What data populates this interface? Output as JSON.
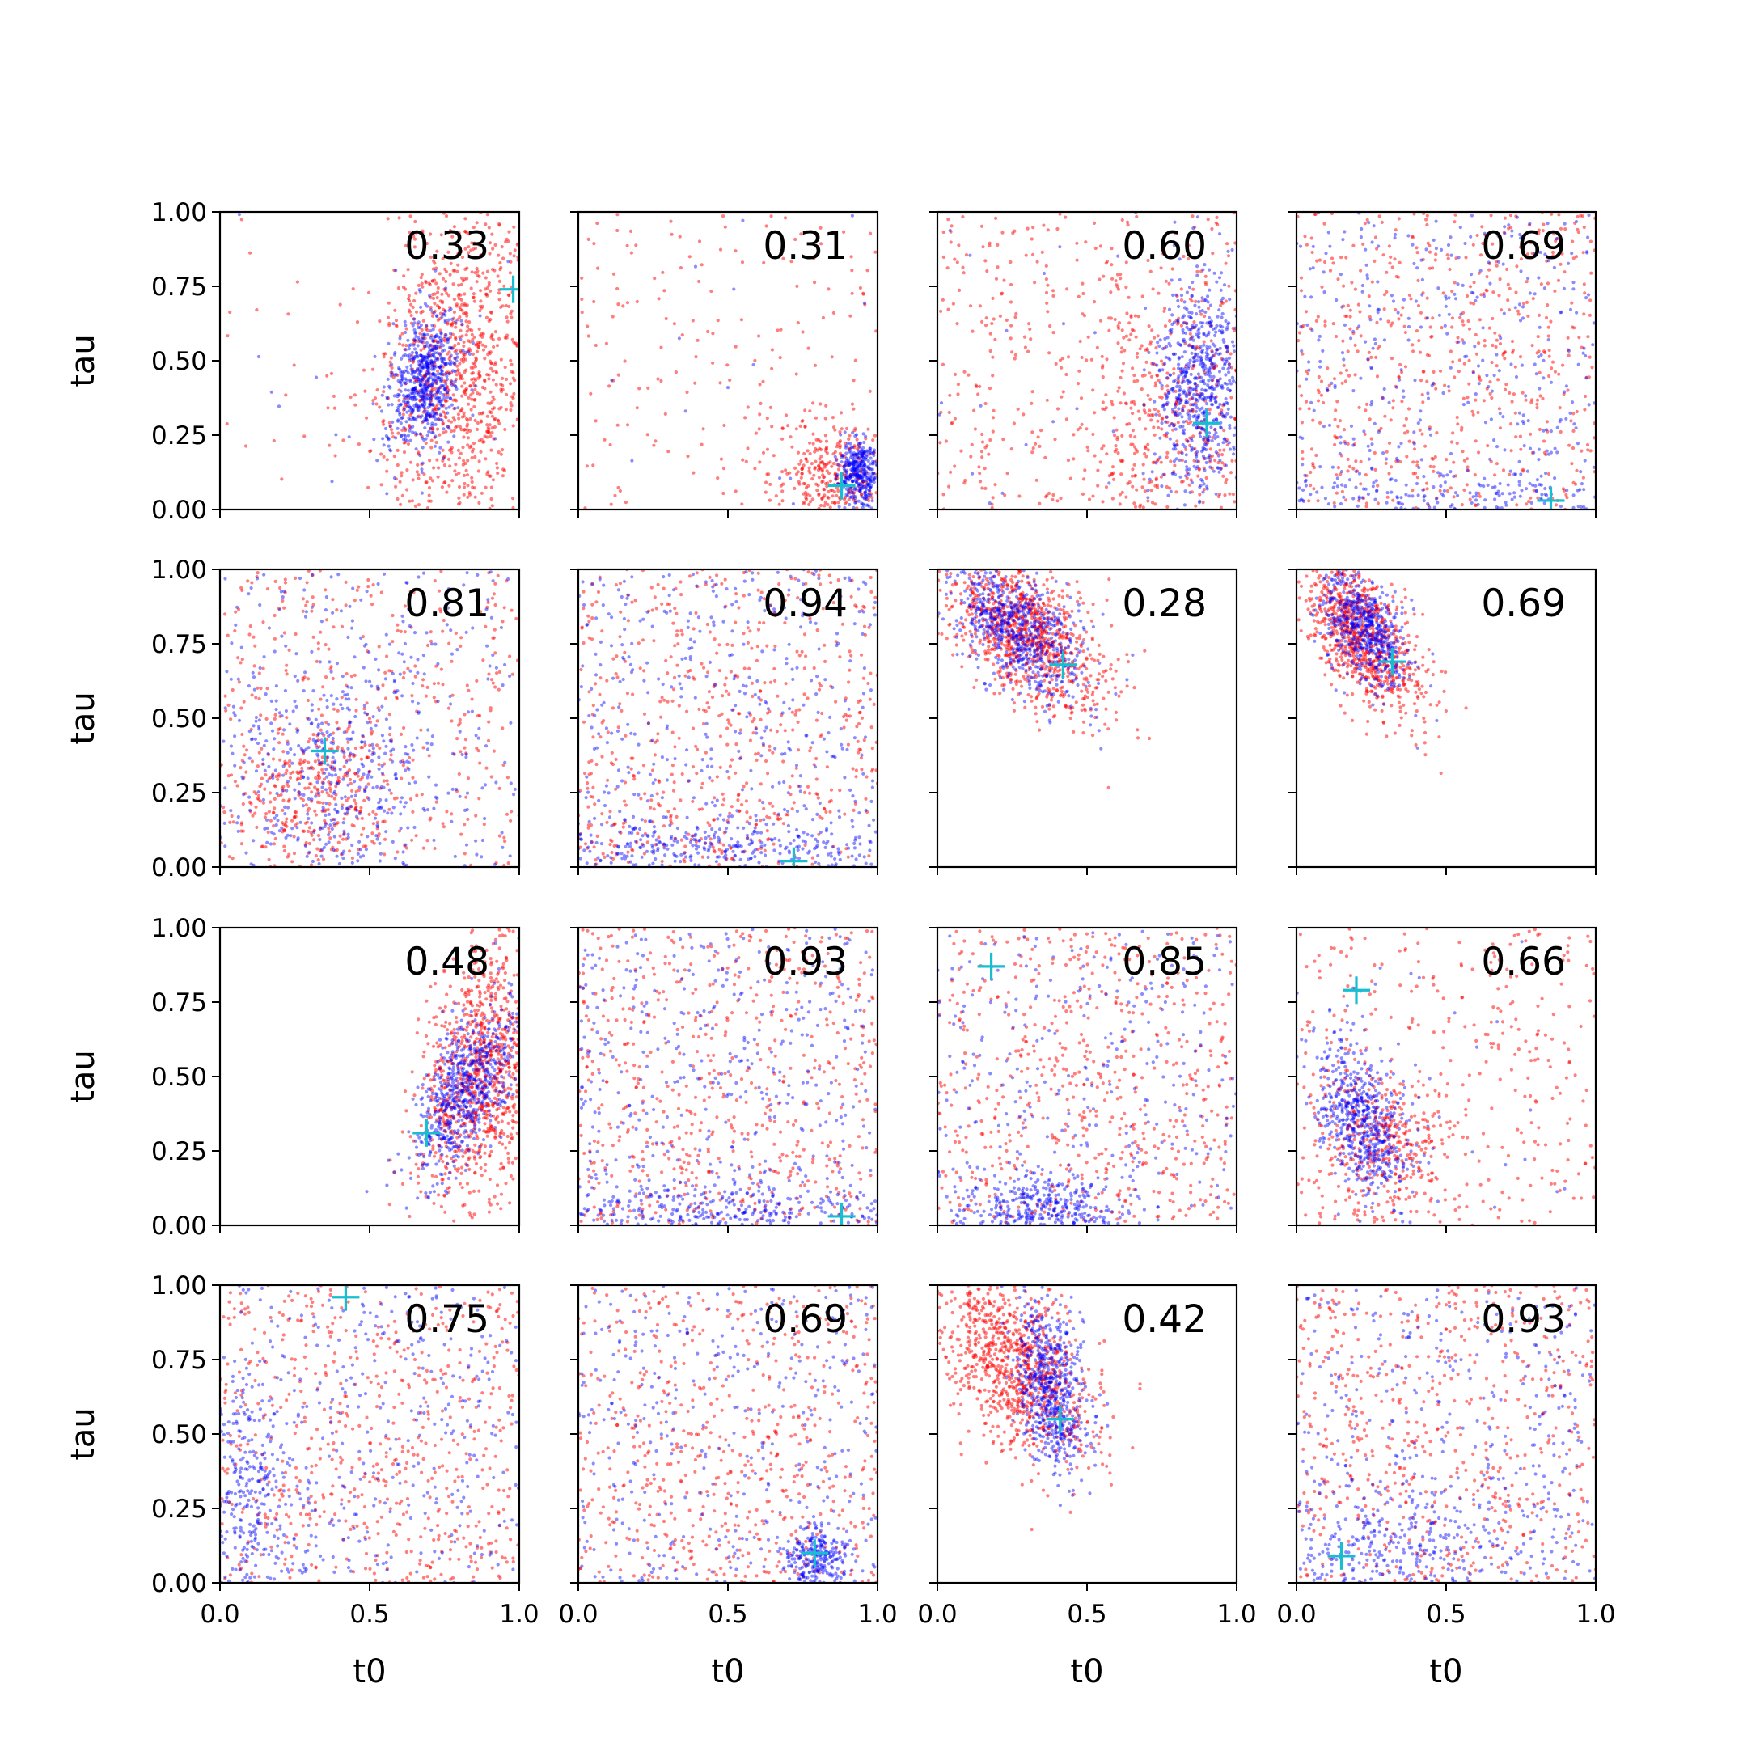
{
  "chart_data": {
    "type": "scatter",
    "layout": "4x4 grid of panels, shared axes",
    "xlabel": "t0",
    "ylabel": "tau",
    "xlim": [
      0,
      1
    ],
    "ylim": [
      0,
      1
    ],
    "xticks": [
      "0.0",
      "0.5",
      "1.0"
    ],
    "yticks": [
      "0.00",
      "0.25",
      "0.50",
      "0.75",
      "1.00"
    ],
    "colors": {
      "series_a": "#ff0000",
      "series_b": "#0000ff",
      "marker": "#17becf"
    },
    "marker_style": "plus",
    "panels": [
      {
        "label": "0.33",
        "marker": [
          0.98,
          0.74
        ],
        "red": {
          "cx": 0.8,
          "cy": 0.5,
          "sx": 0.13,
          "sy": 0.28,
          "rho": 0.1,
          "n": 900,
          "uniform": 0.05
        },
        "blue": {
          "cx": 0.68,
          "cy": 0.43,
          "sx": 0.06,
          "sy": 0.11,
          "rho": 0.2,
          "n": 650,
          "uniform": 0.02
        }
      },
      {
        "label": "0.31",
        "marker": [
          0.88,
          0.08
        ],
        "red": {
          "cx": 0.85,
          "cy": 0.12,
          "sx": 0.1,
          "sy": 0.1,
          "rho": 0.0,
          "n": 450,
          "uniform": 0.4
        },
        "blue": {
          "cx": 0.94,
          "cy": 0.12,
          "sx": 0.035,
          "sy": 0.06,
          "rho": 0.0,
          "n": 350,
          "uniform": 0.03
        }
      },
      {
        "label": "0.60",
        "marker": [
          0.9,
          0.29
        ],
        "red": {
          "cx": 0.8,
          "cy": 0.3,
          "sx": 0.15,
          "sy": 0.2,
          "rho": 0.0,
          "n": 700,
          "uniform": 0.55
        },
        "blue": {
          "cx": 0.88,
          "cy": 0.42,
          "sx": 0.07,
          "sy": 0.17,
          "rho": 0.0,
          "n": 650,
          "uniform": 0.05
        }
      },
      {
        "label": "0.69",
        "marker": [
          0.85,
          0.03
        ],
        "red": {
          "cx": 0.5,
          "cy": 0.5,
          "sx": 0.3,
          "sy": 0.3,
          "rho": 0.0,
          "n": 600,
          "uniform": 0.9
        },
        "blue": {
          "cx": 0.5,
          "cy": 0.05,
          "sx": 0.4,
          "sy": 0.04,
          "rho": 0.0,
          "n": 500,
          "uniform": 0.75
        }
      },
      {
        "label": "0.81",
        "marker": [
          0.35,
          0.39
        ],
        "red": {
          "cx": 0.3,
          "cy": 0.25,
          "sx": 0.15,
          "sy": 0.15,
          "rho": 0.0,
          "n": 700,
          "uniform": 0.5
        },
        "blue": {
          "cx": 0.38,
          "cy": 0.3,
          "sx": 0.15,
          "sy": 0.2,
          "rho": 0.0,
          "n": 600,
          "uniform": 0.5
        }
      },
      {
        "label": "0.94",
        "marker": [
          0.72,
          0.02
        ],
        "red": {
          "cx": 0.5,
          "cy": 0.2,
          "sx": 0.3,
          "sy": 0.15,
          "rho": 0.0,
          "n": 600,
          "uniform": 0.9
        },
        "blue": {
          "cx": 0.5,
          "cy": 0.05,
          "sx": 0.35,
          "sy": 0.05,
          "rho": 0.0,
          "n": 650,
          "uniform": 0.65
        }
      },
      {
        "label": "0.28",
        "marker": [
          0.42,
          0.68
        ],
        "red": {
          "cx": 0.3,
          "cy": 0.78,
          "sx": 0.13,
          "sy": 0.14,
          "rho": -0.55,
          "n": 900,
          "uniform": 0.0
        },
        "blue": {
          "cx": 0.27,
          "cy": 0.8,
          "sx": 0.11,
          "sy": 0.12,
          "rho": -0.55,
          "n": 650,
          "uniform": 0.0
        }
      },
      {
        "label": "0.69",
        "marker": [
          0.32,
          0.69
        ],
        "red": {
          "cx": 0.22,
          "cy": 0.78,
          "sx": 0.1,
          "sy": 0.14,
          "rho": -0.6,
          "n": 800,
          "uniform": 0.0
        },
        "blue": {
          "cx": 0.23,
          "cy": 0.8,
          "sx": 0.07,
          "sy": 0.1,
          "rho": -0.5,
          "n": 550,
          "uniform": 0.0
        }
      },
      {
        "label": "0.48",
        "marker": [
          0.69,
          0.31
        ],
        "red": {
          "cx": 0.88,
          "cy": 0.5,
          "sx": 0.1,
          "sy": 0.22,
          "rho": 0.3,
          "n": 900,
          "uniform": 0.0
        },
        "blue": {
          "cx": 0.82,
          "cy": 0.45,
          "sx": 0.09,
          "sy": 0.15,
          "rho": 0.6,
          "n": 650,
          "uniform": 0.0
        }
      },
      {
        "label": "0.93",
        "marker": [
          0.88,
          0.03
        ],
        "red": {
          "cx": 0.5,
          "cy": 0.2,
          "sx": 0.3,
          "sy": 0.15,
          "rho": 0.0,
          "n": 600,
          "uniform": 0.9
        },
        "blue": {
          "cx": 0.5,
          "cy": 0.05,
          "sx": 0.35,
          "sy": 0.05,
          "rho": 0.0,
          "n": 650,
          "uniform": 0.6
        }
      },
      {
        "label": "0.85",
        "marker": [
          0.18,
          0.87
        ],
        "red": {
          "cx": 0.5,
          "cy": 0.3,
          "sx": 0.3,
          "sy": 0.2,
          "rho": 0.0,
          "n": 600,
          "uniform": 0.85
        },
        "blue": {
          "cx": 0.35,
          "cy": 0.06,
          "sx": 0.12,
          "sy": 0.06,
          "rho": 0.0,
          "n": 600,
          "uniform": 0.5
        }
      },
      {
        "label": "0.66",
        "marker": [
          0.2,
          0.79
        ],
        "red": {
          "cx": 0.28,
          "cy": 0.28,
          "sx": 0.1,
          "sy": 0.12,
          "rho": -0.2,
          "n": 700,
          "uniform": 0.45
        },
        "blue": {
          "cx": 0.22,
          "cy": 0.35,
          "sx": 0.08,
          "sy": 0.14,
          "rho": -0.5,
          "n": 600,
          "uniform": 0.05
        }
      },
      {
        "label": "0.75",
        "marker": [
          0.42,
          0.96
        ],
        "red": {
          "cx": 0.5,
          "cy": 0.3,
          "sx": 0.3,
          "sy": 0.2,
          "rho": 0.0,
          "n": 600,
          "uniform": 0.9
        },
        "blue": {
          "cx": 0.1,
          "cy": 0.3,
          "sx": 0.08,
          "sy": 0.2,
          "rho": 0.0,
          "n": 600,
          "uniform": 0.6
        }
      },
      {
        "label": "0.69",
        "marker": [
          0.79,
          0.1
        ],
        "red": {
          "cx": 0.5,
          "cy": 0.3,
          "sx": 0.3,
          "sy": 0.2,
          "rho": 0.0,
          "n": 600,
          "uniform": 0.85
        },
        "blue": {
          "cx": 0.8,
          "cy": 0.08,
          "sx": 0.05,
          "sy": 0.06,
          "rho": 0.0,
          "n": 600,
          "uniform": 0.6
        }
      },
      {
        "label": "0.42",
        "marker": [
          0.41,
          0.55
        ],
        "red": {
          "cx": 0.27,
          "cy": 0.72,
          "sx": 0.13,
          "sy": 0.15,
          "rho": -0.5,
          "n": 900,
          "uniform": 0.0
        },
        "blue": {
          "cx": 0.38,
          "cy": 0.65,
          "sx": 0.06,
          "sy": 0.14,
          "rho": -0.3,
          "n": 600,
          "uniform": 0.0
        }
      },
      {
        "label": "0.93",
        "marker": [
          0.15,
          0.09
        ],
        "red": {
          "cx": 0.5,
          "cy": 0.3,
          "sx": 0.3,
          "sy": 0.2,
          "rho": 0.0,
          "n": 600,
          "uniform": 0.9
        },
        "blue": {
          "cx": 0.3,
          "cy": 0.1,
          "sx": 0.2,
          "sy": 0.1,
          "rho": 0.0,
          "n": 600,
          "uniform": 0.65
        }
      }
    ]
  }
}
